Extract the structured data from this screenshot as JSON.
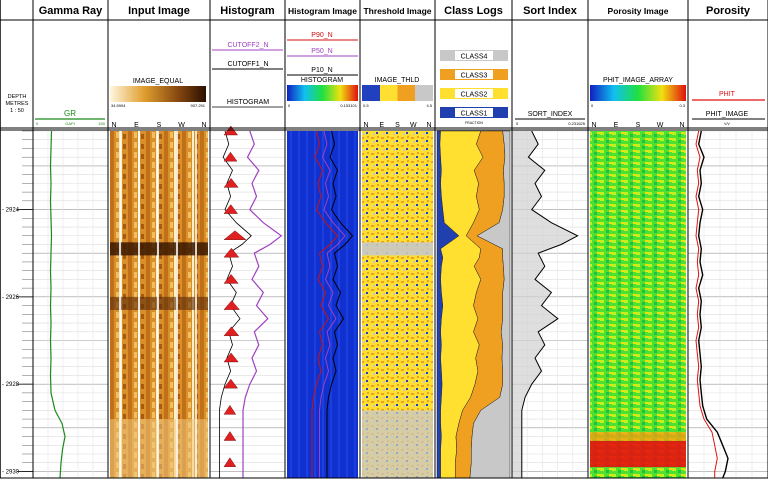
{
  "chart_data": {
    "type": "well-log",
    "depth_unit": "METRES",
    "scale": "1 : 50",
    "depth_header": "DEPTH",
    "depth_range": [
      2922.2,
      2930.15
    ],
    "depth_ticks": [
      2924,
      2926,
      2928,
      2930
    ],
    "tracks": [
      {
        "key": "depth",
        "title": ""
      },
      {
        "key": "gr",
        "title": "Gamma Ray"
      },
      {
        "key": "img",
        "title": "Input Image"
      },
      {
        "key": "hist",
        "title": "Histogram"
      },
      {
        "key": "himg",
        "title": "Histogram Image"
      },
      {
        "key": "thld",
        "title": "Threshold Image"
      },
      {
        "key": "cls",
        "title": "Class Logs"
      },
      {
        "key": "sort",
        "title": "Sort Index"
      },
      {
        "key": "por",
        "title": "Porosity Image"
      },
      {
        "key": "phit",
        "title": "Porosity"
      }
    ],
    "headers": {
      "gr": {
        "curve": "GR",
        "unit": "GAPI",
        "min": "0",
        "max": "150",
        "color": "#1a8a1a"
      },
      "img": {
        "curve": "IMAGE_EQUAL",
        "min": "34.5904",
        "max": "907.291"
      },
      "hist": {
        "curves": [
          "CUTOFF2_N",
          "CUTOFF1_N",
          "HISTOGRAM"
        ],
        "colors": [
          "#a040c0",
          "#000000",
          "#000000"
        ]
      },
      "himg": {
        "curves": [
          "P90_N",
          "P50_N",
          "P10_N",
          "HISTOGRAM"
        ],
        "colors": [
          "#d01010",
          "#a040c0",
          "#000000",
          "#000000"
        ],
        "min": "0",
        "max": "0.153101"
      },
      "thld": {
        "curve": "IMAGE_THLD",
        "min": "0.5",
        "max": "4.5"
      },
      "cls": {
        "curves": [
          "CLASS4",
          "CLASS3",
          "CLASS2",
          "CLASS1"
        ],
        "colors": [
          "#c8c8c8",
          "#f0a020",
          "#ffe030",
          "#2040b0"
        ],
        "unit": "FRACTION"
      },
      "sort": {
        "curve": "SORT_INDEX",
        "min": "0",
        "max": "0.231625"
      },
      "por": {
        "curve": "PHIT_IMAGE_ARRAY",
        "min": "0",
        "max": "0.3"
      },
      "phit": {
        "curves": [
          "PHIT",
          "PHIT_IMAGE"
        ],
        "colors": [
          "#e01010",
          "#000000"
        ],
        "unit": "V/V"
      }
    },
    "azimuth_labels": [
      "N",
      "E",
      "S",
      "W",
      "N"
    ],
    "gamma_ray": {
      "depth": [
        2922.2,
        2922.6,
        2923.0,
        2923.4,
        2923.8,
        2924.2,
        2924.6,
        2925.0,
        2925.4,
        2925.8,
        2926.2,
        2926.6,
        2927.0,
        2927.4,
        2927.8,
        2928.2,
        2928.6,
        2928.9,
        2929.2,
        2929.5,
        2929.8,
        2930.15
      ],
      "value": [
        37,
        36,
        35,
        36,
        35,
        36,
        37,
        36,
        35,
        36,
        35,
        36,
        35,
        36,
        35,
        36,
        44,
        58,
        64,
        59,
        56,
        54
      ]
    },
    "class_fractions": {
      "depth": [
        2922.2,
        2922.5,
        2922.8,
        2923.1,
        2923.4,
        2923.7,
        2924.0,
        2924.3,
        2924.6,
        2924.9,
        2925.1,
        2925.3,
        2925.6,
        2925.9,
        2926.2,
        2926.5,
        2926.8,
        2927.1,
        2927.4,
        2927.7,
        2928.0,
        2928.3,
        2928.6,
        2928.9,
        2929.2,
        2929.5,
        2929.8,
        2930.15
      ],
      "class1": [
        0.05,
        0.04,
        0.05,
        0.06,
        0.05,
        0.06,
        0.08,
        0.1,
        0.3,
        0.05,
        0.08,
        0.06,
        0.05,
        0.06,
        0.08,
        0.06,
        0.05,
        0.06,
        0.05,
        0.06,
        0.07,
        0.06,
        0.05,
        0.05,
        0.06,
        0.05,
        0.05,
        0.05
      ],
      "class2": [
        0.55,
        0.5,
        0.58,
        0.45,
        0.52,
        0.48,
        0.5,
        0.4,
        0.1,
        0.55,
        0.5,
        0.45,
        0.55,
        0.48,
        0.42,
        0.5,
        0.45,
        0.52,
        0.48,
        0.5,
        0.45,
        0.4,
        0.3,
        0.25,
        0.2,
        0.22,
        0.2,
        0.2
      ],
      "class3": [
        0.3,
        0.38,
        0.3,
        0.4,
        0.35,
        0.38,
        0.32,
        0.35,
        0.15,
        0.3,
        0.32,
        0.4,
        0.32,
        0.36,
        0.4,
        0.34,
        0.38,
        0.32,
        0.36,
        0.34,
        0.38,
        0.4,
        0.25,
        0.2,
        0.22,
        0.2,
        0.22,
        0.2
      ],
      "class4": [
        0.1,
        0.08,
        0.07,
        0.09,
        0.08,
        0.08,
        0.1,
        0.15,
        0.45,
        0.1,
        0.1,
        0.09,
        0.08,
        0.1,
        0.1,
        0.1,
        0.12,
        0.1,
        0.11,
        0.1,
        0.1,
        0.14,
        0.4,
        0.5,
        0.52,
        0.53,
        0.53,
        0.55
      ]
    },
    "sort_index": {
      "depth": [
        2922.2,
        2922.5,
        2922.8,
        2923.1,
        2923.4,
        2923.7,
        2924.0,
        2924.3,
        2924.6,
        2924.8,
        2925.0,
        2925.3,
        2925.6,
        2925.9,
        2926.2,
        2926.5,
        2926.8,
        2927.1,
        2927.4,
        2927.7,
        2928.0,
        2928.3,
        2928.6,
        2928.9,
        2929.2,
        2929.5,
        2929.8,
        2930.15
      ],
      "value": [
        0.06,
        0.08,
        0.05,
        0.1,
        0.07,
        0.09,
        0.06,
        0.12,
        0.2,
        0.15,
        0.08,
        0.1,
        0.07,
        0.12,
        0.09,
        0.14,
        0.08,
        0.1,
        0.07,
        0.09,
        0.06,
        0.04,
        0.03,
        0.03,
        0.03,
        0.03,
        0.03,
        0.03
      ]
    },
    "porosity": {
      "depth": [
        2922.2,
        2922.5,
        2922.8,
        2923.1,
        2923.4,
        2923.7,
        2924.0,
        2924.3,
        2924.6,
        2924.9,
        2925.2,
        2925.5,
        2925.8,
        2926.1,
        2926.4,
        2926.7,
        2927.0,
        2927.3,
        2927.6,
        2927.9,
        2928.2,
        2928.5,
        2928.8,
        2929.1,
        2929.4,
        2929.7,
        2930.0,
        2930.15
      ],
      "phit": [
        0.04,
        0.03,
        0.045,
        0.035,
        0.04,
        0.03,
        0.04,
        0.035,
        0.03,
        0.04,
        0.035,
        0.04,
        0.03,
        0.04,
        0.035,
        0.04,
        0.03,
        0.035,
        0.04,
        0.035,
        0.04,
        0.045,
        0.06,
        0.09,
        0.1,
        0.11,
        0.1,
        0.1
      ],
      "phit_image": [
        0.05,
        0.04,
        0.06,
        0.045,
        0.05,
        0.04,
        0.055,
        0.045,
        0.04,
        0.05,
        0.045,
        0.055,
        0.04,
        0.05,
        0.045,
        0.05,
        0.04,
        0.045,
        0.05,
        0.045,
        0.05,
        0.055,
        0.07,
        0.11,
        0.13,
        0.15,
        0.14,
        0.13
      ]
    }
  }
}
